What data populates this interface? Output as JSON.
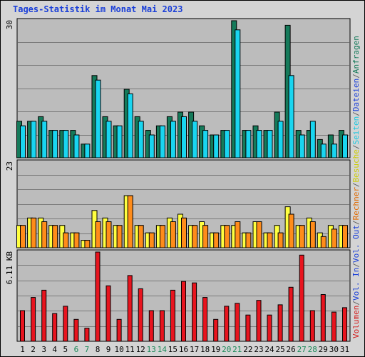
{
  "chart_data": {
    "type": "bar",
    "title": "Tages-Statistik im Monat Mai 2023",
    "categories": [
      "1",
      "2",
      "3",
      "4",
      "5",
      "6",
      "7",
      "8",
      "9",
      "10",
      "11",
      "12",
      "13",
      "14",
      "15",
      "16",
      "17",
      "18",
      "19",
      "20",
      "21",
      "22",
      "23",
      "24",
      "25",
      "26",
      "27",
      "28",
      "29",
      "30",
      "31"
    ],
    "weekend_days": [
      "6",
      "7",
      "13",
      "14",
      "20",
      "21",
      "27",
      "28"
    ],
    "panels": [
      {
        "name": "top",
        "ytick": "30",
        "ymax": 30,
        "series": [
          {
            "name": "Anfragen",
            "color": "#157a5a",
            "values": [
              8,
              8,
              9,
              6,
              6,
              6,
              3,
              18,
              9,
              7,
              15,
              9,
              6,
              7,
              9,
              10,
              10,
              7,
              5,
              6,
              30,
              6,
              7,
              6,
              10,
              29,
              6,
              6,
              4,
              5,
              6
            ]
          },
          {
            "name": "Dateien",
            "color": "#19d5f0",
            "values": [
              7,
              8,
              8,
              6,
              6,
              5,
              3,
              17,
              8,
              7,
              14,
              8,
              5,
              7,
              8,
              9,
              8,
              6,
              5,
              6,
              28,
              6,
              6,
              6,
              8,
              18,
              5,
              8,
              3,
              3,
              5
            ]
          }
        ]
      },
      {
        "name": "middle",
        "ytick": "23",
        "ymax": 23,
        "series": [
          {
            "name": "Besuche",
            "color": "#ffff40",
            "values": [
              6,
              8,
              8,
              6,
              6,
              4,
              2,
              10,
              8,
              6,
              14,
              6,
              4,
              6,
              8,
              9,
              6,
              7,
              4,
              6,
              6,
              4,
              7,
              4,
              6,
              11,
              6,
              8,
              4,
              6,
              6
            ]
          },
          {
            "name": "Rechner",
            "color": "#ff8c1a",
            "values": [
              6,
              8,
              7,
              6,
              4,
              4,
              2,
              7,
              7,
              6,
              14,
              6,
              4,
              6,
              7,
              8,
              6,
              6,
              4,
              6,
              7,
              4,
              7,
              4,
              4,
              9,
              6,
              7,
              3,
              5,
              6
            ]
          }
        ]
      },
      {
        "name": "bottom",
        "ytick": "6.11 KB",
        "ymax": 6.11,
        "series": [
          {
            "name": "Volumen",
            "color": "#e8141e",
            "values": [
              2.1,
              3.0,
              3.5,
              1.9,
              2.4,
              1.5,
              0.9,
              6.11,
              3.8,
              1.5,
              4.5,
              3.6,
              2.1,
              2.1,
              3.5,
              4.1,
              4.0,
              3.0,
              1.5,
              2.4,
              2.6,
              1.8,
              2.8,
              1.8,
              2.5,
              3.7,
              5.9,
              2.1,
              3.2,
              2.0,
              2.3
            ]
          }
        ]
      }
    ],
    "right_labels": [
      {
        "text": "Volumen",
        "color": "#d42020"
      },
      {
        "text": "/",
        "color": "#606060"
      },
      {
        "text": "Vol. In",
        "color": "#1a3fd8"
      },
      {
        "text": "/",
        "color": "#606060"
      },
      {
        "text": "Vol. Out",
        "color": "#1a3fd8"
      },
      {
        "text": "/",
        "color": "#606060"
      },
      {
        "text": "Rechner",
        "color": "#e06a00"
      },
      {
        "text": "/",
        "color": "#606060"
      },
      {
        "text": "Besuche",
        "color": "#cccc00"
      },
      {
        "text": "/",
        "color": "#606060"
      },
      {
        "text": "Seiten",
        "color": "#19c8e0"
      },
      {
        "text": "/",
        "color": "#606060"
      },
      {
        "text": "Dateien",
        "color": "#1a3fd8"
      },
      {
        "text": "/",
        "color": "#606060"
      },
      {
        "text": "Anfragen",
        "color": "#157a5a"
      }
    ],
    "grid": true,
    "colors": {
      "plot_bg": "#bcbcbc",
      "grid": "#7a7a7a",
      "weekday_label": "#000000",
      "weekend_label": "#1c8a5a"
    }
  }
}
